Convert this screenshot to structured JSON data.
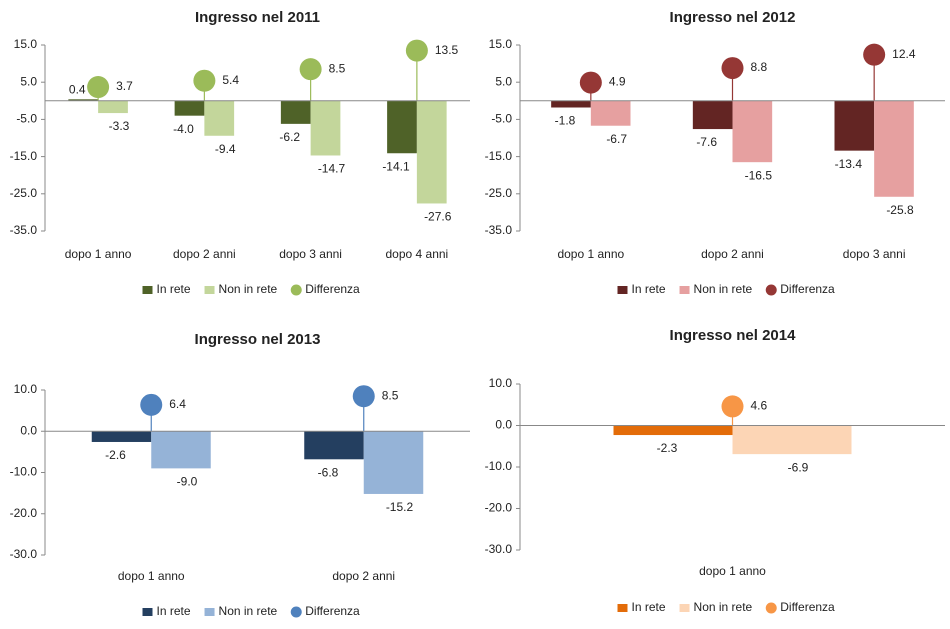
{
  "chart_data": [
    {
      "type": "bar",
      "title": "Ingresso nel 2011",
      "categories": [
        "dopo 1 anno",
        "dopo 2 anni",
        "dopo 3 anni",
        "dopo 4 anni"
      ],
      "series": [
        {
          "name": "In rete",
          "color": "#4f6228",
          "values": [
            0.4,
            -4.0,
            -6.2,
            -14.1
          ],
          "value_labels": [
            "0.4",
            "-4.0",
            "-6.2",
            "-14.1"
          ]
        },
        {
          "name": "Non in rete",
          "color": "#c3d69b",
          "values": [
            -3.3,
            -9.4,
            -14.7,
            -27.6
          ],
          "value_labels": [
            "-3.3",
            "-9.4",
            "-14.7",
            "-27.6"
          ]
        },
        {
          "name": "Differenza",
          "color": "#9bbb59",
          "values": [
            3.7,
            5.4,
            8.5,
            13.5
          ],
          "value_labels": [
            "3.7",
            "5.4",
            "8.5",
            "13.5"
          ]
        }
      ],
      "ylim": [
        -35,
        15
      ],
      "yticks": [
        {
          "value": 15,
          "label": "15.0"
        },
        {
          "value": 5,
          "label": "5.0"
        },
        {
          "value": -5,
          "label": "-5.0"
        },
        {
          "value": -15,
          "label": "-15.0"
        },
        {
          "value": -25,
          "label": "-25.0"
        },
        {
          "value": -35,
          "label": "-35.0"
        }
      ]
    },
    {
      "type": "bar",
      "title": "Ingresso nel 2012",
      "categories": [
        "dopo 1 anno",
        "dopo 2 anni",
        "dopo 3 anni"
      ],
      "series": [
        {
          "name": "In rete",
          "color": "#632523",
          "values": [
            -1.8,
            -7.6,
            -13.4
          ],
          "value_labels": [
            "-1.8",
            "-7.6",
            "-13.4"
          ]
        },
        {
          "name": "Non in rete",
          "color": "#e6a0a0",
          "values": [
            -6.7,
            -16.5,
            -25.8
          ],
          "value_labels": [
            "-6.7",
            "-16.5",
            "-25.8"
          ]
        },
        {
          "name": "Differenza",
          "color": "#953735",
          "values": [
            4.9,
            8.8,
            12.4
          ],
          "value_labels": [
            "4.9",
            "8.8",
            "12.4"
          ]
        }
      ],
      "ylim": [
        -35,
        15
      ],
      "yticks": [
        {
          "value": 15,
          "label": "15.0"
        },
        {
          "value": 5,
          "label": "5.0"
        },
        {
          "value": -5,
          "label": "-5.0"
        },
        {
          "value": -15,
          "label": "-15.0"
        },
        {
          "value": -25,
          "label": "-25.0"
        },
        {
          "value": -35,
          "label": "-35.0"
        }
      ]
    },
    {
      "type": "bar",
      "title": "Ingresso nel 2013",
      "categories": [
        "dopo 1 anno",
        "dopo 2 anni"
      ],
      "series": [
        {
          "name": "In rete",
          "color": "#243f60",
          "values": [
            -2.6,
            -6.8
          ],
          "value_labels": [
            "-2.6",
            "-6.8"
          ]
        },
        {
          "name": "Non in rete",
          "color": "#95b3d7",
          "values": [
            -9.0,
            -15.2
          ],
          "value_labels": [
            "-9.0",
            "-15.2"
          ]
        },
        {
          "name": "Differenza",
          "color": "#4f81bd",
          "values": [
            6.4,
            8.5
          ],
          "value_labels": [
            "6.4",
            "8.5"
          ]
        }
      ],
      "ylim": [
        -30,
        10
      ],
      "yticks": [
        {
          "value": 10,
          "label": "10.0"
        },
        {
          "value": 0,
          "label": "0.0"
        },
        {
          "value": -10,
          "label": "-10.0"
        },
        {
          "value": -20,
          "label": "-20.0"
        },
        {
          "value": -30,
          "label": "-30.0"
        }
      ]
    },
    {
      "type": "bar",
      "title": "Ingresso nel 2014",
      "categories": [
        "dopo 1 anno"
      ],
      "series": [
        {
          "name": "In rete",
          "color": "#e36c09",
          "values": [
            -2.3
          ],
          "value_labels": [
            "-2.3"
          ]
        },
        {
          "name": "Non in rete",
          "color": "#fcd5b5",
          "values": [
            -6.9
          ],
          "value_labels": [
            "-6.9"
          ]
        },
        {
          "name": "Differenza",
          "color": "#f79646",
          "values": [
            4.6
          ],
          "value_labels": [
            "4.6"
          ]
        }
      ],
      "ylim": [
        -30,
        10
      ],
      "yticks": [
        {
          "value": 10,
          "label": "10.0"
        },
        {
          "value": 0,
          "label": "0.0"
        },
        {
          "value": -10,
          "label": "-10.0"
        },
        {
          "value": -20,
          "label": "-20.0"
        },
        {
          "value": -30,
          "label": "-30.0"
        }
      ]
    }
  ]
}
